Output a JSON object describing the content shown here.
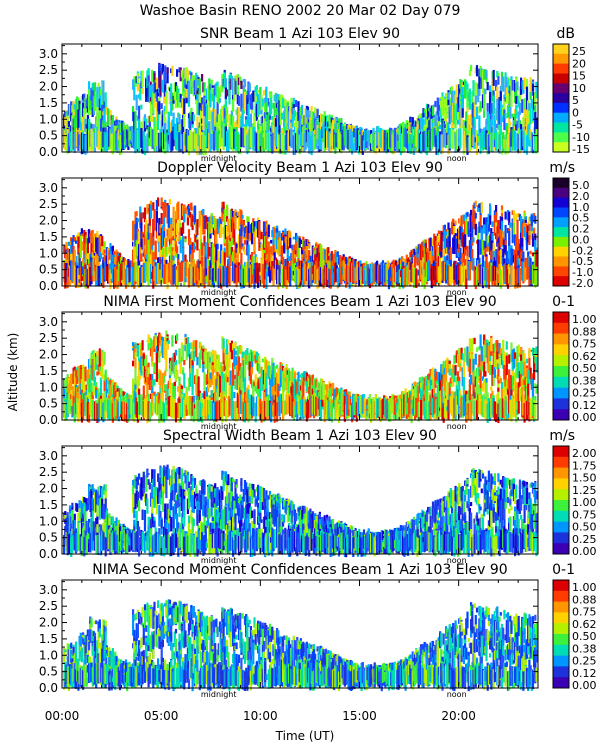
{
  "figure": {
    "title": "Washoe Basin RENO 2002  20 Mar 02 Day 079",
    "ylabel": "Altitude (km)",
    "xlabel": "Time (UT)",
    "xticks": [
      "00:00",
      "05:00",
      "10:00",
      "15:00",
      "20:00"
    ],
    "markers": {
      "midnight": "midnight",
      "noon": "noon"
    }
  },
  "chart_data": [
    {
      "type": "heatmap",
      "title": "SNR Beam 1 Azi 103 Elev 90",
      "units": "dB",
      "xlim": [
        0,
        24
      ],
      "ylim": [
        0,
        3.3
      ],
      "yticks": [
        "0.0",
        "0.5",
        "1.0",
        "1.5",
        "2.0",
        "2.5",
        "3.0"
      ],
      "colorbar": {
        "labels": [
          "25",
          "20",
          "15",
          "10",
          "5",
          "0",
          "-5",
          "-10",
          "-15"
        ],
        "colors": [
          "#ffd21e",
          "#ff9a00",
          "#ff3c00",
          "#c80000",
          "#6a0070",
          "#2a00a0",
          "#0030ff",
          "#00aaff",
          "#00e6a0",
          "#4cff4c",
          "#c8ff1e"
        ]
      },
      "field": {
        "kind": "snr",
        "colors": [
          "#3aa8ff",
          "#00c8ff",
          "#00e6b4",
          "#20e63a",
          "#50ff30",
          "#96ff1e",
          "#2850ff",
          "#0014c8",
          "#ffd21e"
        ]
      }
    },
    {
      "type": "heatmap",
      "title": "Doppler Velocity Beam 1 Azi 103 Elev 90",
      "units": "m/s",
      "xlim": [
        0,
        24
      ],
      "ylim": [
        0,
        3.3
      ],
      "yticks": [
        "0.0",
        "0.5",
        "1.0",
        "1.5",
        "2.0",
        "2.5",
        "3.0"
      ],
      "colorbar": {
        "labels": [
          "5.0",
          "2.0",
          "1.0",
          "0.5",
          "0.2",
          "0.0",
          "-0.2",
          "-0.5",
          "-1.0",
          "-2.0"
        ],
        "colors": [
          "#1a0028",
          "#4b0080",
          "#1400d2",
          "#0046ff",
          "#00a0ff",
          "#00e6a0",
          "#78f000",
          "#ffd200",
          "#ff9600",
          "#ff4600",
          "#dc0000"
        ]
      },
      "field": {
        "kind": "doppler",
        "colors": [
          "#ff3c00",
          "#ff9600",
          "#ffd200",
          "#dc0000",
          "#78f000",
          "#ff5a00",
          "#0046ff",
          "#1400d2",
          "#00a0ff"
        ]
      }
    },
    {
      "type": "heatmap",
      "title": "NIMA First Moment Confidences Beam 1 Azi 103 Elev 90",
      "units": "0-1",
      "xlim": [
        0,
        24
      ],
      "ylim": [
        0,
        3.3
      ],
      "yticks": [
        "0.0",
        "0.5",
        "1.0",
        "1.5",
        "2.0",
        "2.5",
        "3.0"
      ],
      "colorbar": {
        "labels": [
          "1.00",
          "0.88",
          "0.75",
          "0.62",
          "0.50",
          "0.38",
          "0.25",
          "0.12",
          "0.00"
        ],
        "colors": [
          "#dc0000",
          "#ff3c00",
          "#ff9600",
          "#ffd200",
          "#b4f000",
          "#3cf03c",
          "#00dcb4",
          "#0096ff",
          "#1e32dc",
          "#3c00b4"
        ]
      },
      "field": {
        "kind": "conf",
        "colors": [
          "#78f03c",
          "#3cf03c",
          "#b4f000",
          "#ffd200",
          "#ff9600",
          "#00dcb4",
          "#ff3c00",
          "#dc0000",
          "#0096ff"
        ]
      }
    },
    {
      "type": "heatmap",
      "title": "Spectral Width Beam 1 Azi 103 Elev 90",
      "units": "m/s",
      "xlim": [
        0,
        24
      ],
      "ylim": [
        0,
        3.3
      ],
      "yticks": [
        "0.0",
        "0.5",
        "1.0",
        "1.5",
        "2.0",
        "2.5",
        "3.0"
      ],
      "colorbar": {
        "labels": [
          "2.00",
          "1.75",
          "1.50",
          "1.25",
          "1.00",
          "0.75",
          "0.50",
          "0.25",
          "0.00"
        ],
        "colors": [
          "#dc0000",
          "#ff3c00",
          "#ff9600",
          "#ffd200",
          "#b4f000",
          "#3cf03c",
          "#00dcb4",
          "#0096ff",
          "#1e32dc",
          "#3c00b4"
        ]
      },
      "field": {
        "kind": "width",
        "colors": [
          "#1e32dc",
          "#0046ff",
          "#2850ff",
          "#0096ff",
          "#00dcb4",
          "#3cf03c",
          "#b4f000",
          "#1400d2"
        ]
      }
    },
    {
      "type": "heatmap",
      "title": "NIMA Second Moment Confidences Beam 1 Azi 103 Elev 90",
      "units": "0-1",
      "xlim": [
        0,
        24
      ],
      "ylim": [
        0,
        3.3
      ],
      "yticks": [
        "0.0",
        "0.5",
        "1.0",
        "1.5",
        "2.0",
        "2.5",
        "3.0"
      ],
      "colorbar": {
        "labels": [
          "1.00",
          "0.88",
          "0.75",
          "0.62",
          "0.50",
          "0.38",
          "0.25",
          "0.12",
          "0.00"
        ],
        "colors": [
          "#dc0000",
          "#ff3c00",
          "#ff9600",
          "#ffd200",
          "#b4f000",
          "#3cf03c",
          "#00dcb4",
          "#0096ff",
          "#1e32dc",
          "#3c00b4"
        ]
      },
      "field": {
        "kind": "conf2",
        "colors": [
          "#0046ff",
          "#1e32dc",
          "#00dcb4",
          "#3cf03c",
          "#0096ff",
          "#b4f000",
          "#2850ff"
        ]
      }
    }
  ]
}
